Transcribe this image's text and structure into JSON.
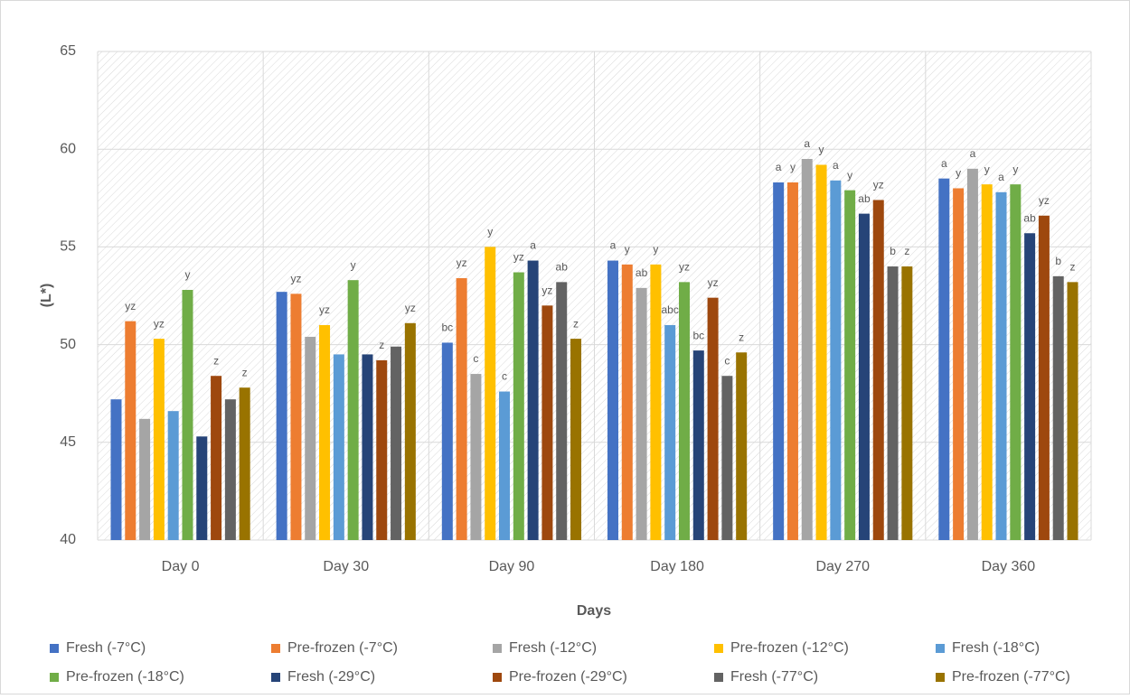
{
  "chart_data": {
    "type": "bar",
    "x_label": "Days",
    "y_label": "(L*)",
    "categories": [
      "Day 0",
      "Day 30",
      "Day 90",
      "Day 180",
      "Day 270",
      "Day 360"
    ],
    "ylim": [
      40,
      65
    ],
    "yticks": [
      40,
      45,
      50,
      55,
      60,
      65
    ],
    "grid": true,
    "series": [
      {
        "name": "Fresh (-7°C)",
        "color": "#4472c4",
        "values": [
          47.2,
          52.7,
          50.1,
          54.3,
          58.3,
          58.5
        ],
        "letters": [
          null,
          null,
          "bc",
          "a",
          "a",
          "a"
        ]
      },
      {
        "name": "Pre-frozen (-7°C)",
        "color": "#ed7d31",
        "values": [
          51.2,
          52.6,
          53.4,
          54.1,
          58.3,
          58.0
        ],
        "letters": [
          "yz",
          "yz",
          "yz",
          "y",
          "y",
          "y"
        ]
      },
      {
        "name": "Fresh (-12°C)",
        "color": "#a5a5a5",
        "values": [
          46.2,
          50.4,
          48.5,
          52.9,
          59.5,
          59.0
        ],
        "letters": [
          null,
          null,
          "c",
          "ab",
          "a",
          "a"
        ]
      },
      {
        "name": "Pre-frozen (-12°C)",
        "color": "#ffc000",
        "values": [
          50.3,
          51.0,
          55.0,
          54.1,
          59.2,
          58.2
        ],
        "letters": [
          "yz",
          "yz",
          "y",
          "y",
          "y",
          "y"
        ]
      },
      {
        "name": "Fresh (-18°C)",
        "color": "#5b9bd5",
        "values": [
          46.6,
          49.5,
          47.6,
          51.0,
          58.4,
          57.8
        ],
        "letters": [
          null,
          null,
          "c",
          "abc",
          "a",
          "a"
        ]
      },
      {
        "name": "Pre-frozen (-18°C)",
        "color": "#70ad47",
        "values": [
          52.8,
          53.3,
          53.7,
          53.2,
          57.9,
          58.2
        ],
        "letters": [
          "y",
          "y",
          "yz",
          "yz",
          "y",
          "y"
        ]
      },
      {
        "name": "Fresh (-29°C)",
        "color": "#264478",
        "values": [
          45.3,
          49.5,
          54.3,
          49.7,
          56.7,
          55.7
        ],
        "letters": [
          null,
          null,
          "a",
          "bc",
          "ab",
          "ab"
        ]
      },
      {
        "name": "Pre-frozen (-29°C)",
        "color": "#9e480e",
        "values": [
          48.4,
          49.2,
          52.0,
          52.4,
          57.4,
          56.6
        ],
        "letters": [
          "z",
          "z",
          "yz",
          "yz",
          "yz",
          "yz"
        ]
      },
      {
        "name": "Fresh (-77°C)",
        "color": "#636363",
        "values": [
          47.2,
          49.9,
          53.2,
          48.4,
          54.0,
          53.5
        ],
        "letters": [
          null,
          null,
          "ab",
          "c",
          "b",
          "b"
        ]
      },
      {
        "name": "Pre-frozen (-77°C)",
        "color": "#997300",
        "values": [
          47.8,
          51.1,
          50.3,
          49.6,
          54.0,
          53.2
        ],
        "letters": [
          "z",
          "yz",
          "z",
          "z",
          "z",
          "z"
        ]
      }
    ]
  }
}
